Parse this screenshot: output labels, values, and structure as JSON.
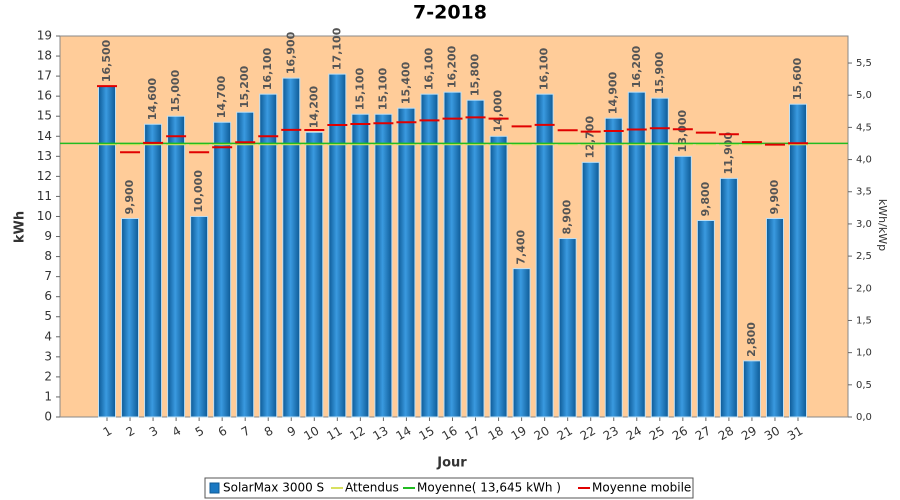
{
  "chart_data": {
    "type": "bar",
    "title": "7-2018",
    "ylabel": "kWh",
    "y2label": "kWh/kWp",
    "xlabel": "Jour",
    "categories": [
      "1",
      "2",
      "3",
      "4",
      "5",
      "6",
      "7",
      "8",
      "9",
      "10",
      "11",
      "12",
      "13",
      "14",
      "15",
      "16",
      "17",
      "18",
      "19",
      "20",
      "21",
      "22",
      "23",
      "24",
      "25",
      "26",
      "27",
      "28",
      "29",
      "30",
      "31"
    ],
    "ylim": [
      0,
      19
    ],
    "yticks": [
      0,
      1,
      2,
      3,
      4,
      5,
      6,
      7,
      8,
      9,
      10,
      11,
      12,
      13,
      14,
      15,
      16,
      17,
      18,
      19
    ],
    "y2lim": [
      0,
      5.92
    ],
    "y2ticks": [
      {
        "value": 0,
        "label": "0,0"
      },
      {
        "value": 0.5,
        "label": "0,5"
      },
      {
        "value": 1,
        "label": "1,0"
      },
      {
        "value": 1.5,
        "label": "1,5"
      },
      {
        "value": 2,
        "label": "2,0"
      },
      {
        "value": 2.5,
        "label": "2,5"
      },
      {
        "value": 3,
        "label": "3,0"
      },
      {
        "value": 3.5,
        "label": "3,5"
      },
      {
        "value": 4,
        "label": "4,0"
      },
      {
        "value": 4.5,
        "label": "4,5"
      },
      {
        "value": 5,
        "label": "5,0"
      },
      {
        "value": 5.5,
        "label": "5,5"
      }
    ],
    "series": [
      {
        "name": "SolarMax 3000 S",
        "type": "bar",
        "color": "#1a78c2",
        "values": [
          16.5,
          9.9,
          14.6,
          15.0,
          10.0,
          14.7,
          15.2,
          16.1,
          16.9,
          14.2,
          17.1,
          15.1,
          15.1,
          15.4,
          16.1,
          16.2,
          15.8,
          14.0,
          7.4,
          16.1,
          8.9,
          12.7,
          14.9,
          16.2,
          15.9,
          13.0,
          9.8,
          11.9,
          2.8,
          9.9,
          15.6
        ],
        "value_labels": [
          "16,500",
          "9,900",
          "14,600",
          "15,000",
          "10,000",
          "14,700",
          "15,200",
          "16,100",
          "16,900",
          "14,200",
          "17,100",
          "15,100",
          "15,100",
          "15,400",
          "16,100",
          "16,200",
          "15,800",
          "14,000",
          "7,400",
          "16,100",
          "8,900",
          "12,700",
          "14,900",
          "16,200",
          "15,900",
          "13,000",
          "9,800",
          "11,900",
          "2,800",
          "9,900",
          "15,600"
        ]
      },
      {
        "name": "Attendus",
        "type": "dash",
        "color": "#d8e060",
        "values": [
          13.6,
          13.6,
          13.6,
          13.6,
          13.6,
          13.6,
          13.6,
          13.6,
          13.6,
          13.6,
          13.6,
          13.6,
          13.6,
          13.6,
          13.6,
          13.6,
          13.6,
          13.6,
          13.6,
          13.6,
          13.6,
          13.6,
          13.6,
          13.6,
          13.6,
          13.6,
          13.6,
          13.6,
          13.6,
          13.6,
          13.6
        ]
      },
      {
        "name": "Moyenne( 13,645 kWh )",
        "type": "hline",
        "color": "#22bb22",
        "value": 13.645
      },
      {
        "name": "Moyenne mobile",
        "type": "dash",
        "color": "#e00000",
        "values": [
          16.5,
          13.2,
          13.67,
          14.0,
          13.2,
          13.45,
          13.7,
          14.0,
          14.32,
          14.31,
          14.56,
          14.61,
          14.65,
          14.7,
          14.79,
          14.88,
          14.94,
          14.88,
          14.49,
          14.57,
          14.3,
          14.23,
          14.26,
          14.34,
          14.4,
          14.35,
          14.18,
          14.1,
          13.71,
          13.58,
          13.65
        ]
      }
    ]
  }
}
